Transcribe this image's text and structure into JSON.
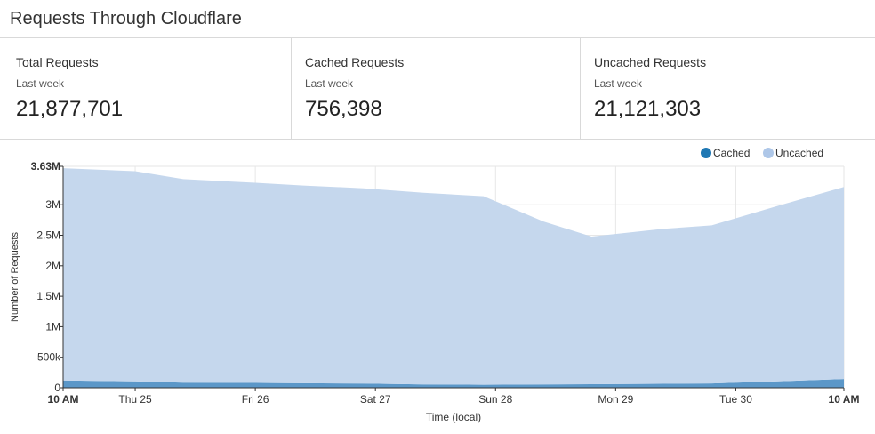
{
  "page": {
    "title": "Requests Through Cloudflare"
  },
  "stats": [
    {
      "label": "Total Requests",
      "period": "Last week",
      "value": "21,877,701"
    },
    {
      "label": "Cached Requests",
      "period": "Last week",
      "value": "756,398"
    },
    {
      "label": "Uncached Requests",
      "period": "Last week",
      "value": "21,121,303"
    }
  ],
  "chart_data": {
    "type": "area",
    "stacked": true,
    "title": "",
    "xlabel": "Time (local)",
    "ylabel": "Number of Requests",
    "ylim": [
      0,
      3630000
    ],
    "x_ticks": [
      "10 AM",
      "Thu 25",
      "Fri 26",
      "Sat 27",
      "Sun 28",
      "Mon 29",
      "Tue 30",
      "10 AM"
    ],
    "x_ticks_bold": [
      true,
      false,
      false,
      false,
      false,
      false,
      false,
      true
    ],
    "y_ticks": [
      {
        "value": 0,
        "label": "0"
      },
      {
        "value": 500000,
        "label": "500k"
      },
      {
        "value": 1000000,
        "label": "1M"
      },
      {
        "value": 1500000,
        "label": "1.5M"
      },
      {
        "value": 2000000,
        "label": "2M"
      },
      {
        "value": 2500000,
        "label": "2.5M"
      },
      {
        "value": 3000000,
        "label": "3M"
      },
      {
        "value": 3630000,
        "label": "3.63M",
        "bold": true
      }
    ],
    "x_days": [
      0,
      0.6,
      1,
      1.6,
      2,
      2.5,
      3,
      3.5,
      4,
      4.4,
      5,
      5.4,
      6,
      6.5
    ],
    "series": [
      {
        "name": "Cached",
        "color": "#1f78b4",
        "area_color": "#5b97c8",
        "values": [
          120000,
          105000,
          85000,
          80000,
          75000,
          70000,
          55000,
          50000,
          55000,
          58000,
          65000,
          72000,
          110000,
          145000
        ]
      },
      {
        "name": "Uncached",
        "color": "#aec7e8",
        "area_color": "#c5d7ed",
        "values": [
          3480000,
          3445000,
          3335000,
          3280000,
          3240000,
          3200000,
          3140000,
          3090000,
          2670000,
          2420000,
          2540000,
          2590000,
          2900000,
          3145000
        ]
      }
    ],
    "legend_position": "top-right",
    "grid": true
  }
}
